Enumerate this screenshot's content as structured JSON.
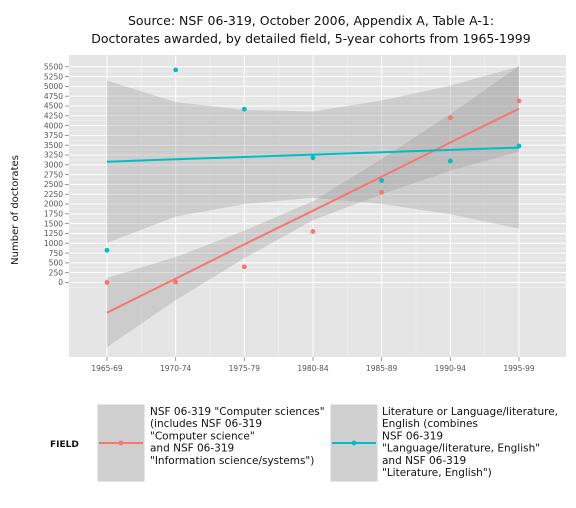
{
  "chart_data": {
    "type": "scatter",
    "title_lines": [
      "Source: NSF 06-319, October 2006, Appendix A, Table A-1:",
      "Doctorates awarded, by detailed field, 5-year cohorts from 1965-1999"
    ],
    "xlabel": "",
    "ylabel": "Number of doctorates",
    "categories": [
      "1965-69",
      "1970-74",
      "1975-79",
      "1980-84",
      "1985-89",
      "1990-94",
      "1995-99"
    ],
    "y_ticks": [
      0,
      250,
      500,
      750,
      1000,
      1250,
      1500,
      1750,
      2000,
      2250,
      2500,
      2750,
      3000,
      3250,
      3500,
      3750,
      4000,
      4250,
      4500,
      4750,
      5000,
      5250,
      5500
    ],
    "y_tick_labels": [
      "0",
      "250",
      "500",
      "750",
      "1000",
      "1250",
      "1500",
      "1750",
      "2000",
      "2250",
      "2500",
      "2750",
      "3000",
      "3250",
      "3500",
      "3750",
      "4000",
      "4250",
      "4500",
      "4750",
      "5000",
      "5250",
      "5500"
    ],
    "ylim": [
      -1900,
      5800
    ],
    "grid": true,
    "smoothing": "linear fit with confidence band",
    "legend_position": "bottom",
    "legend_title": "FIELD",
    "series": [
      {
        "name_lines": [
          "NSF 06-319 \"Computer sciences\"",
          "(includes NSF 06-319",
          "\"Computer science\"",
          "and NSF 06-319",
          "\"Information science/systems\")"
        ],
        "color": "#f8766d",
        "values": [
          0,
          10,
          400,
          1300,
          2300,
          4200,
          4630
        ],
        "fit": [
          -770,
          100,
          970,
          1830,
          2700,
          3570,
          4430
        ],
        "band_lower": [
          -1650,
          -450,
          620,
          1590,
          2250,
          2850,
          3340
        ],
        "band_upper": [
          120,
          650,
          1320,
          2070,
          3150,
          4290,
          5520
        ]
      },
      {
        "name_lines": [
          "Literature or Language/literature,",
          "English (combines",
          "NSF 06-319",
          "\"Language/literature, English\"",
          "and NSF 06-319",
          "\"Literature, English\")"
        ],
        "color": "#00bfc4",
        "values": [
          820,
          5420,
          4420,
          3180,
          2600,
          3100,
          3480
        ],
        "fit": [
          3080,
          3140,
          3200,
          3260,
          3320,
          3380,
          3440
        ],
        "band_lower": [
          1010,
          1680,
          2000,
          2160,
          2000,
          1740,
          1370
        ],
        "band_upper": [
          5150,
          4600,
          4400,
          4360,
          4640,
          5020,
          5510
        ]
      }
    ]
  }
}
